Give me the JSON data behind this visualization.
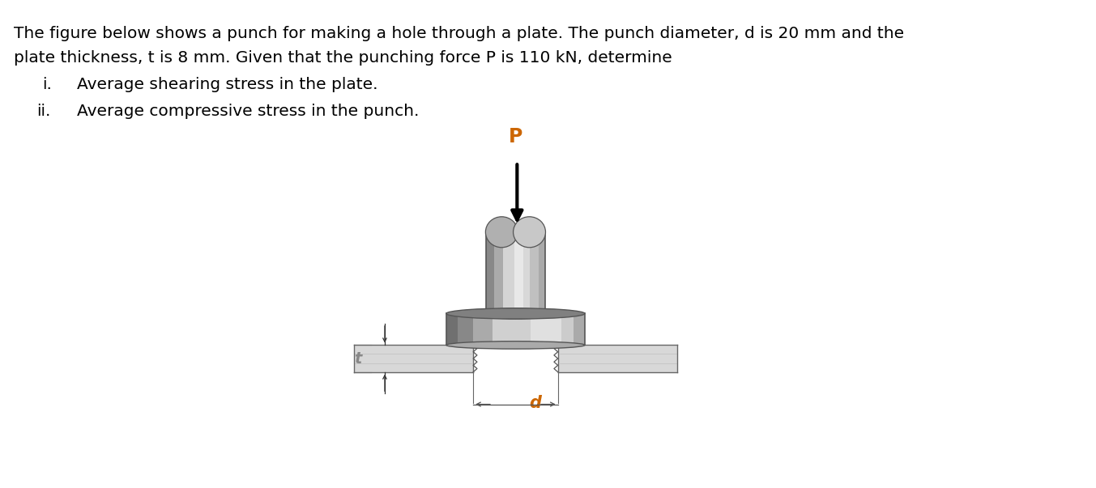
{
  "line1": "The figure below shows a punch for making a hole through a plate. The punch diameter, d is 20 mm and the",
  "line2": "plate thickness, t is 8 mm. Given that the punching force P is 110 kN, determine",
  "item_i_num": "i.",
  "item_i_text": "Average shearing stress in the plate.",
  "item_ii_num": "ii.",
  "item_ii_text": "Average compressive stress in the punch.",
  "bg_color": "#ffffff",
  "label_P_color": "#cc6600",
  "label_t_color": "#808080",
  "label_d_color": "#cc6600"
}
